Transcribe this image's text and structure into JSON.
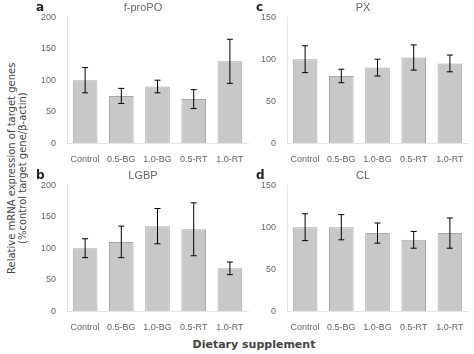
{
  "ylabel": "Relative mRNA expression of target genes\n(%control target gene/β-actin)",
  "xlabel": "Dietary supplement",
  "chart_data": [
    {
      "type": "bar",
      "title": "f-proPO",
      "annotations": [
        "a"
      ],
      "categories": [
        "Control",
        "0.5-BG",
        "1.0-BG",
        "0.5-RT",
        "1.0-RT"
      ],
      "values": [
        100,
        75,
        90,
        70,
        130
      ],
      "errors": [
        20,
        12,
        10,
        15,
        35
      ],
      "color": "#c8c8c8",
      "ylim": [
        0,
        200
      ],
      "yticks": [
        0,
        50,
        100,
        150,
        200
      ],
      "grid": false
    },
    {
      "type": "bar",
      "title": "LGBP",
      "annotations": [
        "b"
      ],
      "categories": [
        "Control",
        "0.5-BG",
        "1.0-BG",
        "0.5-RT",
        "1.0-RT"
      ],
      "values": [
        100,
        110,
        135,
        130,
        68
      ],
      "errors": [
        15,
        25,
        28,
        42,
        10
      ],
      "color": "#c8c8c8",
      "ylim": [
        0,
        200
      ],
      "yticks": [
        0,
        50,
        100,
        150,
        200
      ],
      "grid": false
    },
    {
      "type": "bar",
      "title": "PX",
      "annotations": [
        "c"
      ],
      "categories": [
        "Control",
        "0.5-BG",
        "1.0-BG",
        "0.5-RT",
        "1.0-RT"
      ],
      "values": [
        100,
        80,
        90,
        102,
        95
      ],
      "errors": [
        16,
        8,
        10,
        15,
        10
      ],
      "color": "#c8c8c8",
      "ylim": [
        0,
        150
      ],
      "yticks": [
        0,
        50,
        100,
        150
      ],
      "grid": false
    },
    {
      "type": "bar",
      "title": "CL",
      "annotations": [
        "d"
      ],
      "categories": [
        "Control",
        "0.5-BG",
        "1.0-BG",
        "0.5-RT",
        "1.0-RT"
      ],
      "values": [
        100,
        100,
        93,
        85,
        93
      ],
      "errors": [
        16,
        15,
        12,
        10,
        18
      ],
      "color": "#c8c8c8",
      "ylim": [
        0,
        150
      ],
      "yticks": [
        0,
        50,
        100,
        150
      ],
      "grid": false
    }
  ]
}
